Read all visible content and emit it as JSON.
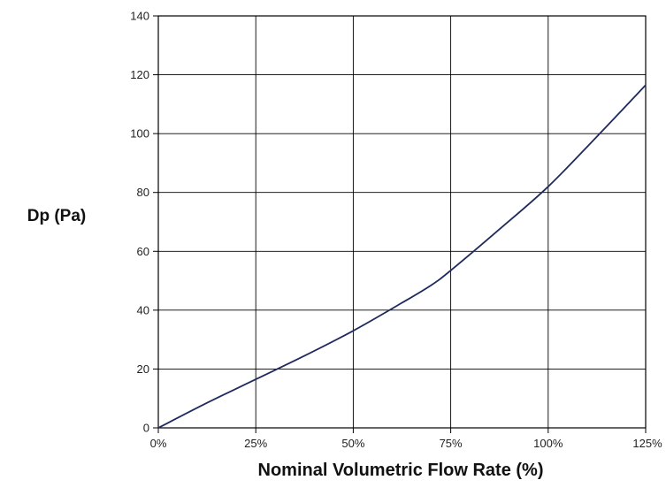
{
  "chart_data": {
    "type": "line",
    "title": "",
    "xlabel": "Nominal Volumetric Flow Rate (%)",
    "ylabel": "Dp (Pa)",
    "xlim": [
      0,
      125
    ],
    "ylim": [
      0,
      140
    ],
    "x_ticks": [
      0,
      25,
      50,
      75,
      100,
      125
    ],
    "x_tick_labels": [
      "0%",
      "25%",
      "50%",
      "75%",
      "100%",
      "125%"
    ],
    "y_ticks": [
      0,
      20,
      40,
      60,
      80,
      100,
      120,
      140
    ],
    "y_tick_labels": [
      "0",
      "20",
      "40",
      "60",
      "80",
      "100",
      "120",
      "140"
    ],
    "grid": true,
    "legend": "none",
    "series": [
      {
        "color": "#1f2a5c",
        "x": [
          0,
          12.5,
          25,
          37.5,
          50,
          62.5,
          70,
          75,
          87.5,
          100,
          112.5,
          125
        ],
        "y": [
          0,
          8.5,
          16.5,
          24.5,
          33,
          42.5,
          48.5,
          53.5,
          67.5,
          82,
          99,
          116.5
        ]
      }
    ]
  }
}
